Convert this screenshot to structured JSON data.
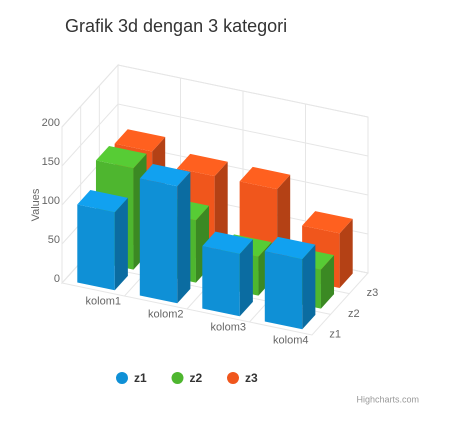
{
  "chart_data": {
    "type": "column3d",
    "title": "Grafik 3d dengan 3 kategori",
    "y_axis_title": "Values",
    "credits": "Highcharts.com",
    "categories": [
      "kolom1",
      "kolom2",
      "kolom3",
      "kolom4"
    ],
    "series": [
      {
        "name": "z1",
        "color": "#0f90d6",
        "values": [
          100,
          150,
          80,
          90
        ]
      },
      {
        "name": "z2",
        "color": "#4eb62f",
        "values": [
          130,
          80,
          50,
          50
        ]
      },
      {
        "name": "z3",
        "color": "#f0561c",
        "values": [
          125,
          110,
          110,
          70
        ]
      }
    ],
    "ylim": [
      0,
      200
    ],
    "yticks": [
      0,
      50,
      100,
      150,
      200
    ],
    "grid": true
  }
}
